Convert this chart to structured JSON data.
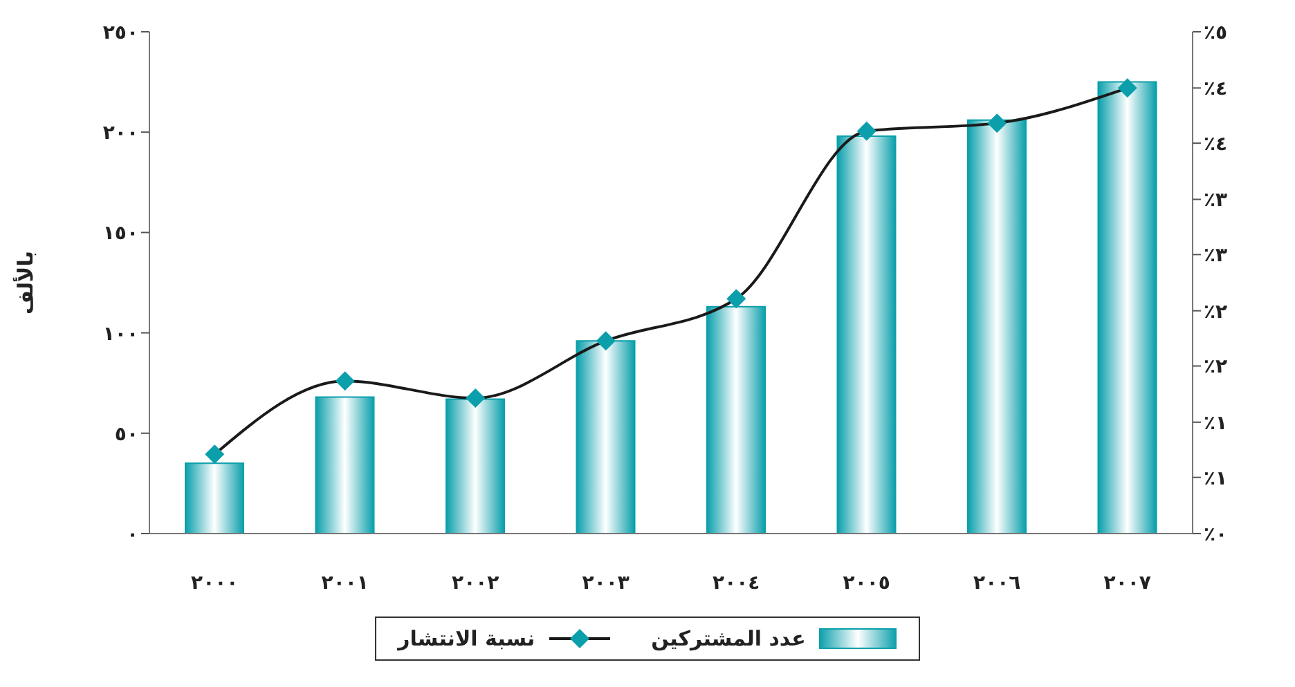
{
  "chart_data": {
    "type": "bar",
    "ylabel": "بالألف",
    "categories": [
      "٢٠٠٠",
      "٢٠٠١",
      "٢٠٠٢",
      "٢٠٠٣",
      "٢٠٠٤",
      "٢٠٠٥",
      "٢٠٠٦",
      "٢٠٠٧"
    ],
    "series": [
      {
        "name": "عدد المشتركين",
        "color": "#0a9fab",
        "values": [
          35,
          68,
          67,
          96,
          113,
          198,
          206,
          225
        ]
      },
      {
        "name": "نسبة الانتشار",
        "type": "line",
        "axis": "y2",
        "color": "#1a1a1a",
        "marker": "diamond",
        "values": [
          0.79,
          1.52,
          1.35,
          1.92,
          2.34,
          4.01,
          4.09,
          4.44
        ]
      }
    ],
    "ylim": [
      0,
      250
    ],
    "yticks": [
      {
        "value": 0,
        "label": "٠"
      },
      {
        "value": 50,
        "label": "٥٠"
      },
      {
        "value": 100,
        "label": "١٠٠"
      },
      {
        "value": 150,
        "label": "١٥٠"
      },
      {
        "value": 200,
        "label": "٢٠٠"
      },
      {
        "value": 250,
        "label": "٢٥٠"
      }
    ],
    "y2lim": [
      0,
      5
    ],
    "y2ticks": [
      {
        "value": 0,
        "label": "٪٠"
      },
      {
        "value": 0.56,
        "label": "٪١"
      },
      {
        "value": 1.11,
        "label": "٪١"
      },
      {
        "value": 1.67,
        "label": "٪٢"
      },
      {
        "value": 2.22,
        "label": "٪٢"
      },
      {
        "value": 2.78,
        "label": "٪٣"
      },
      {
        "value": 3.33,
        "label": "٪٣"
      },
      {
        "value": 3.89,
        "label": "٪٤"
      },
      {
        "value": 4.44,
        "label": "٪٤"
      },
      {
        "value": 5,
        "label": "٪٥"
      }
    ],
    "grid": false,
    "legend": "bottom"
  }
}
